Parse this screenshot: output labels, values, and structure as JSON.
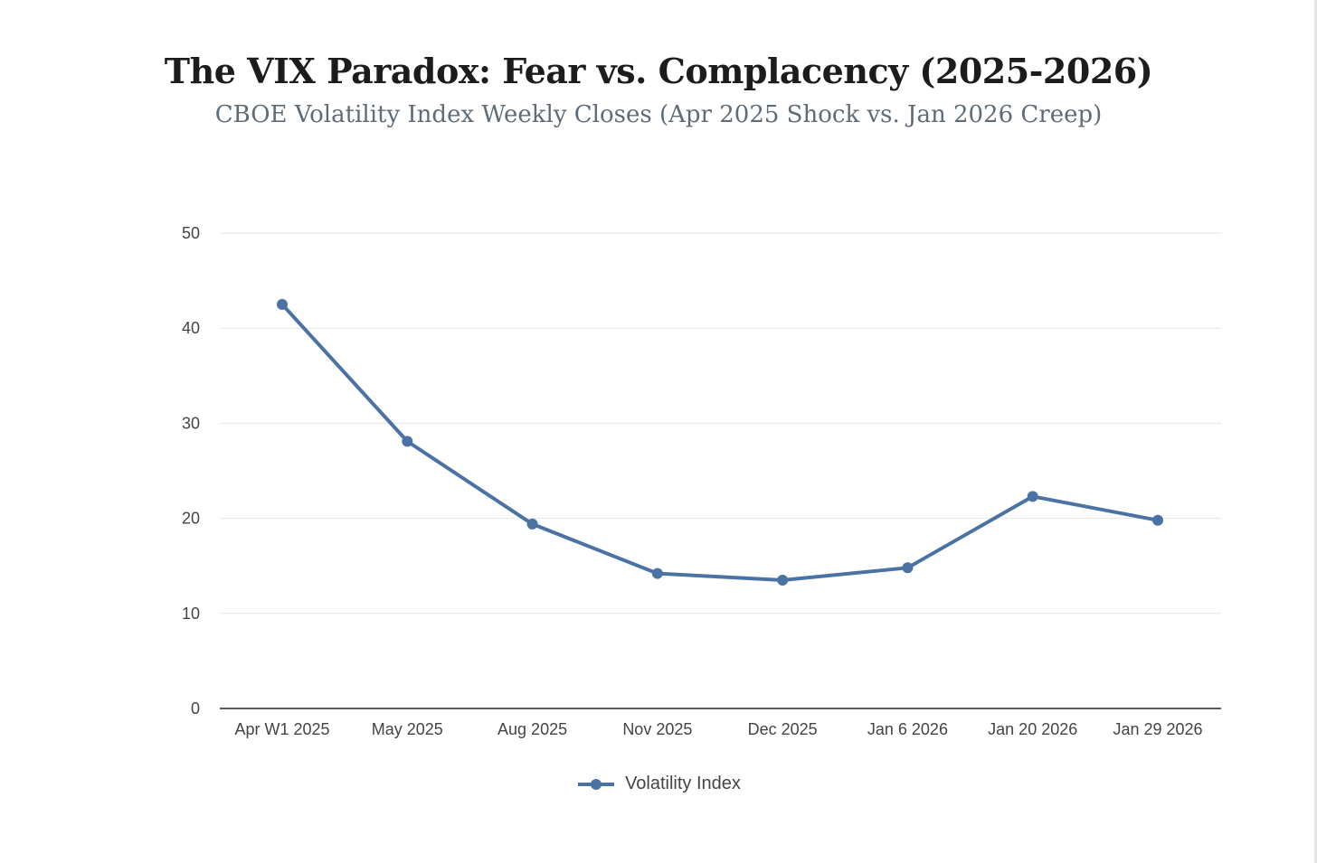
{
  "chart_data": {
    "type": "line",
    "title": "The VIX Paradox: Fear vs. Complacency (2025-2026)",
    "subtitle": "CBOE Volatility Index Weekly Closes (Apr 2025 Shock vs. Jan 2026 Creep)",
    "categories": [
      "Apr W1 2025",
      "May 2025",
      "Aug 2025",
      "Nov 2025",
      "Dec 2025",
      "Jan 6 2026",
      "Jan 20 2026",
      "Jan 29 2026"
    ],
    "series": [
      {
        "name": "Volatility Index",
        "values": [
          42.5,
          28.1,
          19.4,
          14.2,
          13.5,
          14.8,
          22.3,
          19.8
        ],
        "color": "#4a72a3"
      }
    ],
    "ylim": [
      0,
      50
    ],
    "yticks": [
      0,
      10,
      20,
      30,
      40,
      50
    ],
    "grid": true,
    "legend": "bottom-center",
    "xlabel": "",
    "ylabel": ""
  }
}
